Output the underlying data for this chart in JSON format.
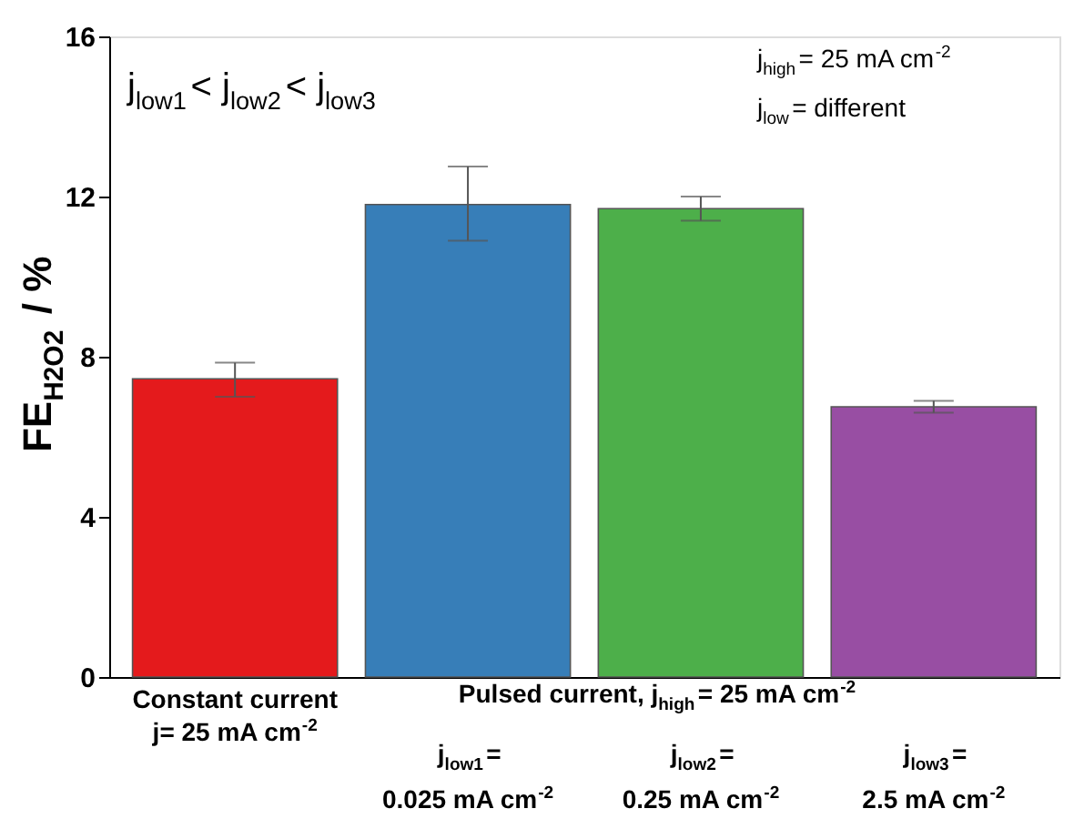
{
  "chart_data": {
    "type": "bar",
    "categories": [
      "Constant current\nj= 25 mA cm$^{-2}$",
      "j$_{low1}$=\n0.025 mA cm$^{-2}$",
      "j$_{low2}$=\n0.25 mA cm$^{-2}$",
      "j$_{low3}$=\n2.5 mA cm$^{-2}$"
    ],
    "values": [
      7.45,
      11.8,
      11.7,
      6.75
    ],
    "colors": [
      "#e41a1c",
      "#377eb8",
      "#4daf4a",
      "#984ea3"
    ],
    "errors": [
      [
        7.0,
        7.85
      ],
      [
        10.9,
        12.75
      ],
      [
        11.4,
        12.0
      ],
      [
        6.6,
        6.9
      ]
    ],
    "ylabel": "FE$_{H2O2}$ / %",
    "ylim": [
      0,
      16
    ],
    "yticks": [
      0,
      4,
      8,
      12,
      16
    ],
    "annotations": [
      "j$_{low1}$< j$_{low2}$< j$_{low3}$",
      "j$_{high}$= 25 mA cm$^{-2}$",
      "j$_{low}$= different",
      "Pulsed current, j$_{high}$= 25 mA cm$^{-2}$"
    ],
    "grid": false
  }
}
